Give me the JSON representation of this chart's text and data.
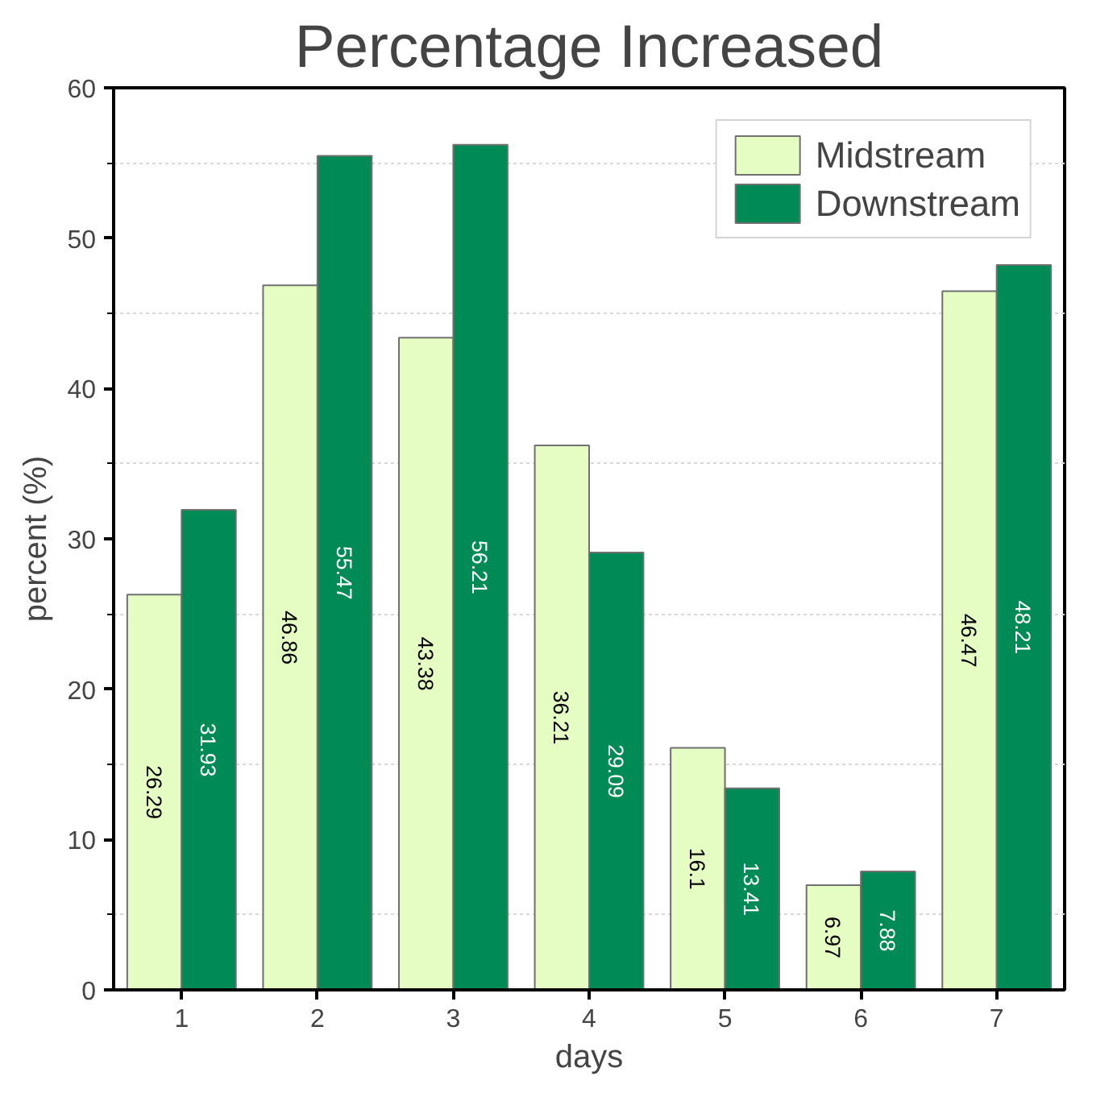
{
  "chart_data": {
    "type": "bar",
    "title": "Percentage Increased",
    "xlabel": "days",
    "ylabel": "percent (%)",
    "categories": [
      "1",
      "2",
      "3",
      "4",
      "5",
      "6",
      "7"
    ],
    "series": [
      {
        "name": "Midstream",
        "color": "#e5fcc2",
        "values": [
          26.29,
          46.86,
          43.38,
          36.21,
          16.1,
          6.97,
          46.47
        ]
      },
      {
        "name": "Downstream",
        "color": "#008a55",
        "values": [
          31.93,
          55.47,
          56.21,
          29.09,
          13.41,
          7.88,
          48.21
        ]
      }
    ],
    "ylim": [
      0,
      60
    ],
    "yticks": [
      0,
      {
        "value": 5,
        "label": null
      },
      10,
      {
        "value": 15,
        "label": null
      },
      20,
      {
        "value": 25,
        "label": null
      },
      30,
      {
        "value": 35,
        "label": null
      },
      40,
      {
        "value": 45,
        "label": null
      },
      50,
      {
        "value": 55,
        "label": null
      },
      60
    ],
    "grid": "y",
    "legend": "top right",
    "data_labels": true
  }
}
